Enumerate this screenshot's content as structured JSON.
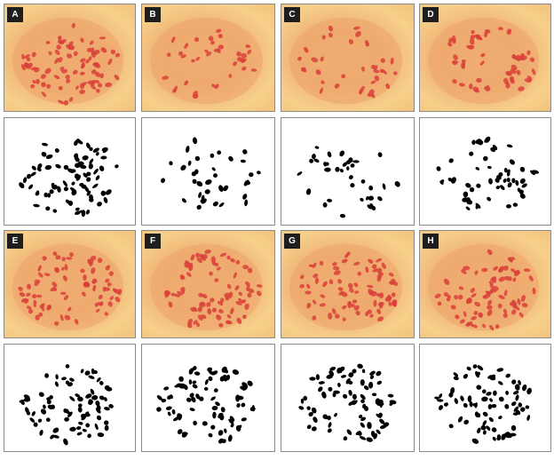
{
  "figure": {
    "panels": [
      {
        "label": "A",
        "chromosome_count_style": "dense"
      },
      {
        "label": "B",
        "chromosome_count_style": "sparse"
      },
      {
        "label": "C",
        "chromosome_count_style": "sparse"
      },
      {
        "label": "D",
        "chromosome_count_style": "medium"
      },
      {
        "label": "E",
        "chromosome_count_style": "dense"
      },
      {
        "label": "F",
        "chromosome_count_style": "dense"
      },
      {
        "label": "G",
        "chromosome_count_style": "dense"
      },
      {
        "label": "H",
        "chromosome_count_style": "dense"
      }
    ],
    "colors": {
      "stain": "#d9403a",
      "drawing": "#000000",
      "cytoplasm": "#f0b173",
      "label_bg": "#1e1e1e"
    }
  }
}
